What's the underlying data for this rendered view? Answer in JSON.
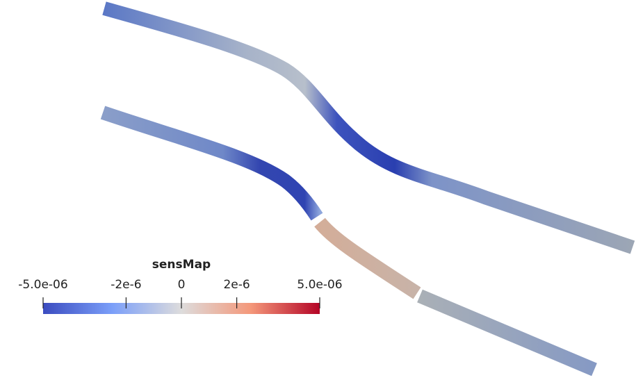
{
  "colorbar": {
    "title": "sensMap",
    "ticks": [
      {
        "value": -5e-06,
        "label": "-5.0e-06"
      },
      {
        "value": -2e-06,
        "label": "-2e-6"
      },
      {
        "value": 0,
        "label": "0"
      },
      {
        "value": 2e-06,
        "label": "2e-6"
      },
      {
        "value": 5e-06,
        "label": "5.0e-06"
      }
    ]
  }
}
